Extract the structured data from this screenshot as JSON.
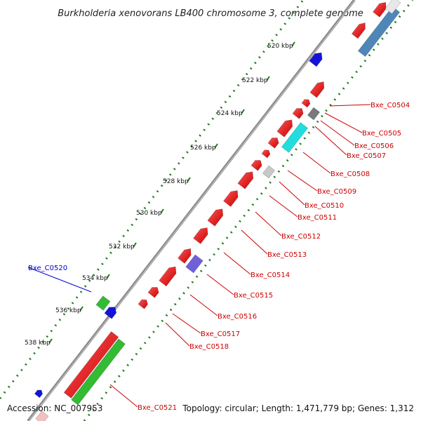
{
  "title": "Burkholderia xenovorans LB400 chromosome 3, complete genome",
  "footer": {
    "accession": "Accession: NC_007953",
    "summary": "Topology: circular; Length: 1,471,779 bp; Genes: 1,312"
  },
  "ticks": [
    "520 kbp",
    "522 kbp",
    "524 kbp",
    "526 kbp",
    "528 kbp",
    "530 kbp",
    "532 kbp",
    "534 kbp",
    "536 kbp",
    "538 kbp"
  ],
  "colors": {
    "backbone": "#8c8c8c",
    "gc_dots": "#1e7a1e",
    "cds_forward": "#ee1111",
    "cds_reverse": "#ee1111",
    "trna_blue": "#1414d8",
    "green": "#33bb33",
    "cyan": "#22dddd",
    "steel": "#4f86b8",
    "grey_feature": "#7a7a7a",
    "light_grey": "#c8c8c8",
    "purple": "#7060d8",
    "label_red": "#cc0000",
    "label_blue": "#0000cc"
  },
  "gene_labels": [
    {
      "name": "Bxe_C0504",
      "color": "red"
    },
    {
      "name": "Bxe_C0505",
      "color": "red"
    },
    {
      "name": "Bxe_C0506",
      "color": "red"
    },
    {
      "name": "Bxe_C0507",
      "color": "red"
    },
    {
      "name": "Bxe_C0508",
      "color": "red"
    },
    {
      "name": "Bxe_C0509",
      "color": "red"
    },
    {
      "name": "Bxe_C0510",
      "color": "red"
    },
    {
      "name": "Bxe_C0511",
      "color": "red"
    },
    {
      "name": "Bxe_C0512",
      "color": "red"
    },
    {
      "name": "Bxe_C0513",
      "color": "red"
    },
    {
      "name": "Bxe_C0514",
      "color": "red"
    },
    {
      "name": "Bxe_C0515",
      "color": "red"
    },
    {
      "name": "Bxe_C0516",
      "color": "red"
    },
    {
      "name": "Bxe_C0517",
      "color": "red"
    },
    {
      "name": "Bxe_C0518",
      "color": "red"
    },
    {
      "name": "Bxe_C0520",
      "color": "blue"
    },
    {
      "name": "Bxe_C0521",
      "color": "red"
    }
  ]
}
